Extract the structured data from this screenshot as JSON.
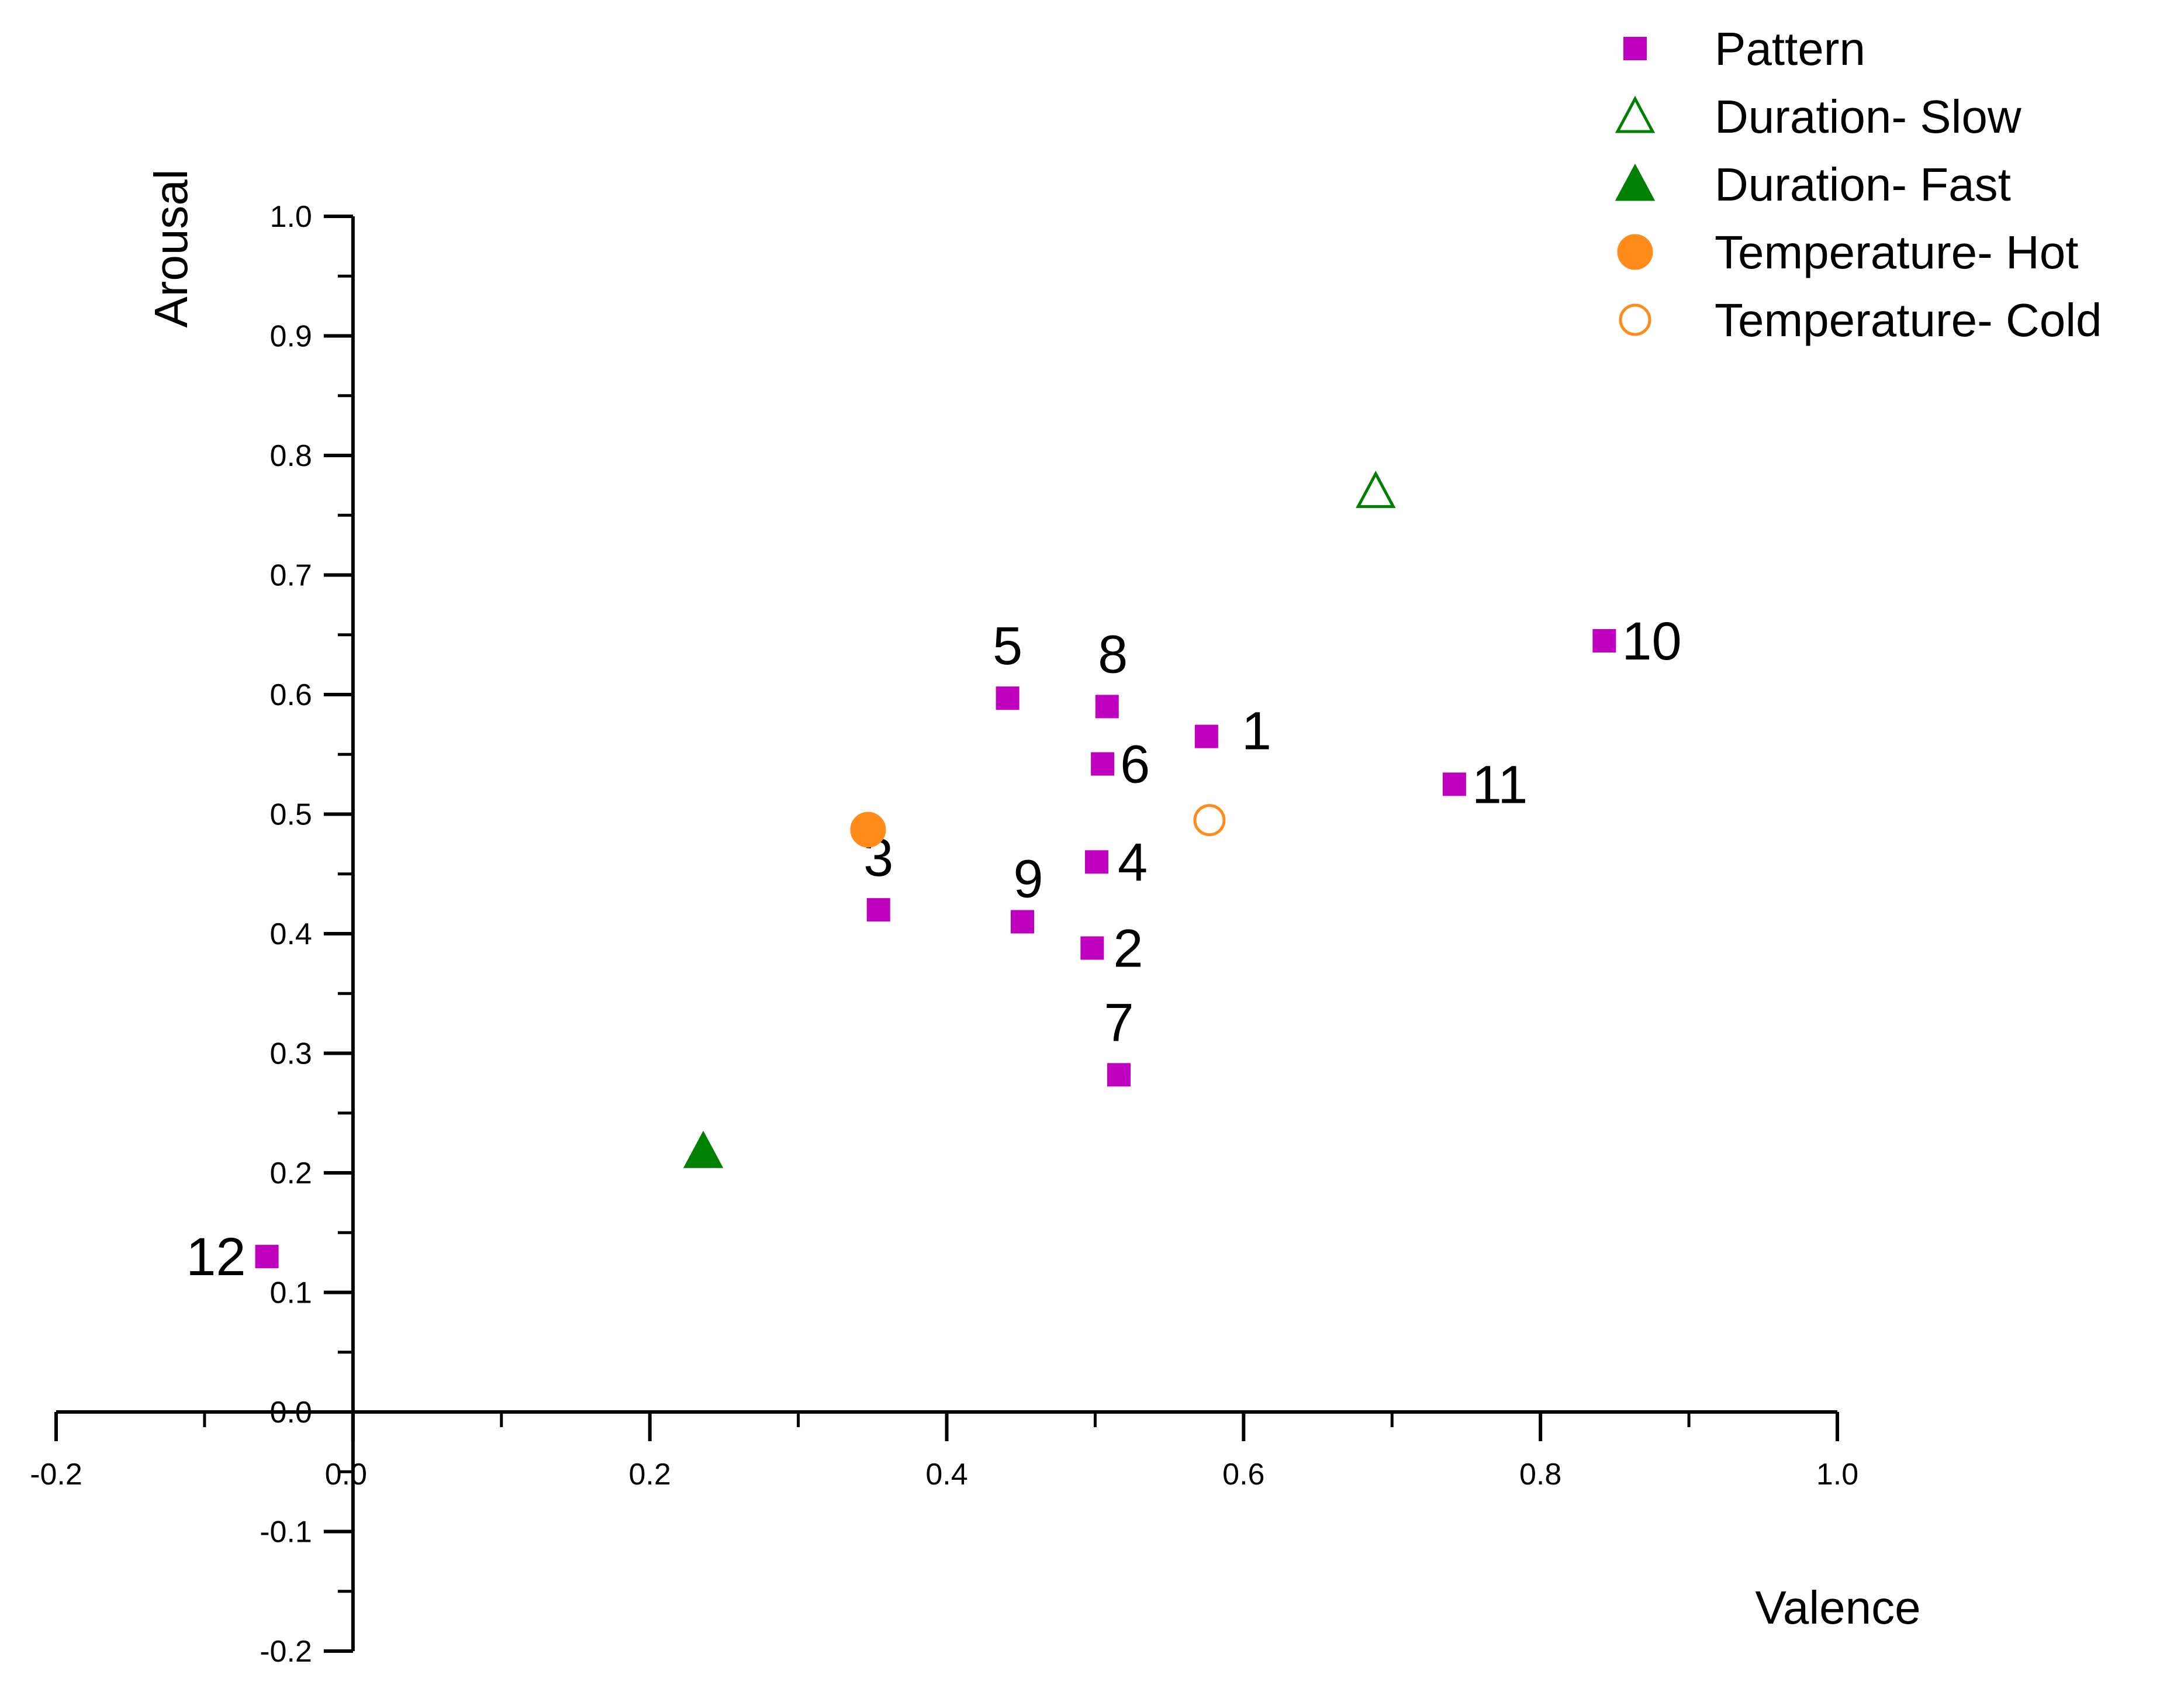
{
  "chart_data": {
    "type": "scatter",
    "title": "",
    "xlabel": "Valence",
    "ylabel": "Arousal",
    "xlim": [
      -0.2,
      1.0
    ],
    "ylim": [
      -0.2,
      1.0
    ],
    "x_ticks": [
      "-0.2",
      "0.0",
      "0.2",
      "0.4",
      "0.6",
      "0.8",
      "1.0"
    ],
    "y_ticks": [
      "-0.2",
      "-0.1",
      "0.0",
      "0.1",
      "0.2",
      "0.3",
      "0.4",
      "0.5",
      "0.6",
      "0.7",
      "0.8",
      "0.9",
      "1.0"
    ],
    "legend_position": "top-right",
    "series": [
      {
        "name": "Pattern",
        "marker": "square-filled",
        "color": "#BF00BF",
        "points": [
          {
            "label": "1",
            "x": 0.575,
            "y": 0.565
          },
          {
            "label": "2",
            "x": 0.498,
            "y": 0.388
          },
          {
            "label": "3",
            "x": 0.354,
            "y": 0.42
          },
          {
            "label": "4",
            "x": 0.501,
            "y": 0.46
          },
          {
            "label": "5",
            "x": 0.441,
            "y": 0.597
          },
          {
            "label": "6",
            "x": 0.505,
            "y": 0.542
          },
          {
            "label": "7",
            "x": 0.516,
            "y": 0.282
          },
          {
            "label": "8",
            "x": 0.508,
            "y": 0.59
          },
          {
            "label": "9",
            "x": 0.451,
            "y": 0.41
          },
          {
            "label": "10",
            "x": 0.843,
            "y": 0.645
          },
          {
            "label": "11",
            "x": 0.742,
            "y": 0.525
          },
          {
            "label": "12",
            "x": -0.058,
            "y": 0.13
          }
        ]
      },
      {
        "name": "Duration- Slow",
        "marker": "triangle-open",
        "color": "#008000",
        "points": [
          {
            "x": 0.689,
            "y": 0.77
          }
        ]
      },
      {
        "name": "Duration- Fast",
        "marker": "triangle-filled",
        "color": "#008000",
        "points": [
          {
            "x": 0.236,
            "y": 0.218
          }
        ]
      },
      {
        "name": "Temperature- Hot",
        "marker": "circle-filled",
        "color": "#FF8C1A",
        "points": [
          {
            "x": 0.347,
            "y": 0.487
          }
        ]
      },
      {
        "name": "Temperature- Cold",
        "marker": "circle-open",
        "color": "#FF8C1A",
        "points": [
          {
            "x": 0.577,
            "y": 0.495
          }
        ]
      }
    ]
  }
}
